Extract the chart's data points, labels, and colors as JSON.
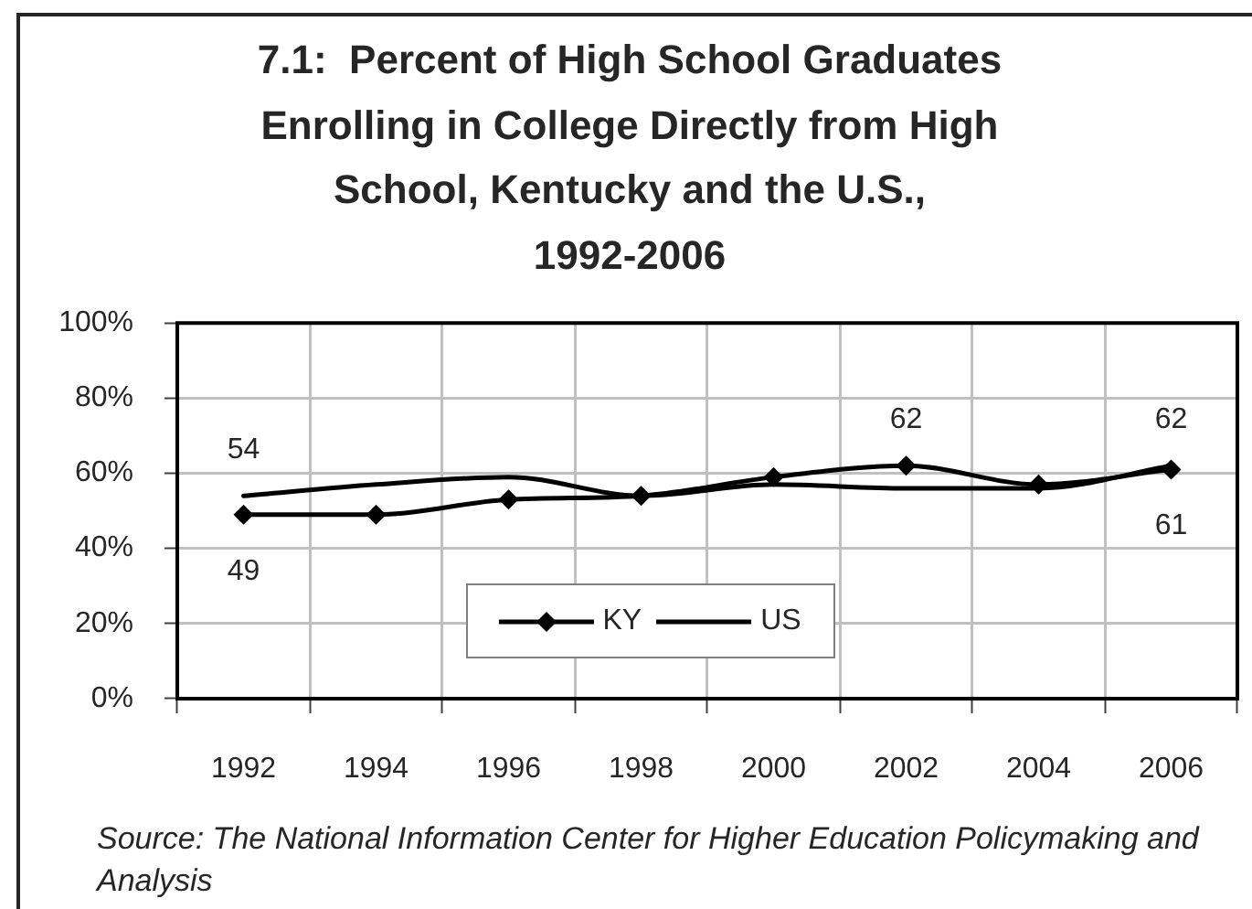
{
  "chart_data": {
    "type": "line",
    "title": "7.1:  Percent of High School Graduates Enrolling in College Directly from High School, Kentucky and the U.S., 1992-2006",
    "categories": [
      "1992",
      "1994",
      "1996",
      "1998",
      "2000",
      "2002",
      "2004",
      "2006"
    ],
    "series": [
      {
        "name": "KY",
        "color": "#000000",
        "marker": "diamond",
        "values": [
          49,
          49,
          53,
          54,
          59,
          62,
          57,
          61
        ],
        "value_labels": [
          "49",
          null,
          null,
          null,
          null,
          "62",
          null,
          "61"
        ]
      },
      {
        "name": "US",
        "color": "#000000",
        "marker": "none",
        "values": [
          54,
          57,
          59,
          54,
          57,
          56,
          56,
          62
        ],
        "value_labels": [
          "54",
          null,
          null,
          null,
          null,
          null,
          null,
          "62"
        ]
      }
    ],
    "ylim": [
      0,
      100
    ],
    "yticks": [
      {
        "value": 0,
        "label": "0%"
      },
      {
        "value": 20,
        "label": "20%"
      },
      {
        "value": 40,
        "label": "40%"
      },
      {
        "value": 60,
        "label": "60%"
      },
      {
        "value": 80,
        "label": "80%"
      },
      {
        "value": 100,
        "label": "100%"
      }
    ],
    "grid": true,
    "legend": "bottom",
    "annotations": [
      "Source: The National Information Center for Higher Education Policymaking and Analysis"
    ]
  }
}
